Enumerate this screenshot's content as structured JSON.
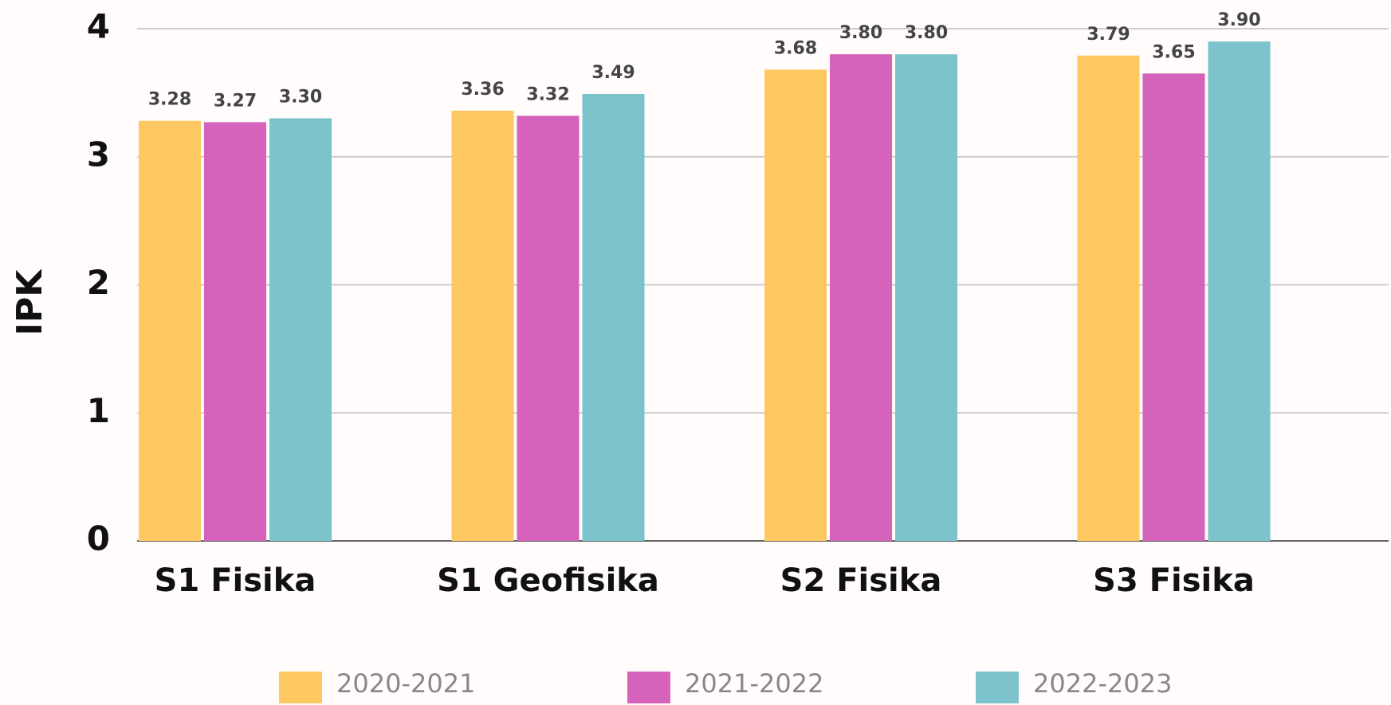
{
  "chart_data": {
    "type": "bar",
    "y_label": "IPK",
    "categories": [
      "S1 Fisika",
      "S1 Geofisika",
      "S2 Fisika",
      "S3 Fisika"
    ],
    "series": [
      {
        "name": "2020-2021",
        "color": "#fdc862",
        "values": [
          3.28,
          3.36,
          3.68,
          3.79
        ],
        "value_labels": [
          "3.28",
          "3.36",
          "3.68",
          "3.79"
        ]
      },
      {
        "name": "2021-2022",
        "color": "#d563bb",
        "values": [
          3.27,
          3.32,
          3.8,
          3.65
        ],
        "value_labels": [
          "3.27",
          "3.32",
          "3.80",
          "3.65"
        ]
      },
      {
        "name": "2022-2023",
        "color": "#7cc3cc",
        "values": [
          3.3,
          3.49,
          3.8,
          3.9
        ],
        "value_labels": [
          "3.30",
          "3.49",
          "3.80",
          "3.90"
        ]
      }
    ],
    "ylim": [
      0,
      4
    ],
    "yticks": [
      0,
      1,
      2,
      3,
      4
    ],
    "grid": true,
    "legend": "bottom"
  }
}
